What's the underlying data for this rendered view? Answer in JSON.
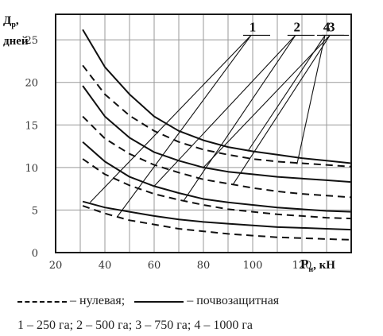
{
  "chart_data": {
    "type": "line",
    "ylabel_line1": "Д",
    "ylabel_sub": "р",
    "ylabel_line1_suffix": ",",
    "ylabel_line2": "дней",
    "xlabel_main": "P",
    "xlabel_sub": "н",
    "xlabel_suffix": ", кН",
    "xlim": [
      20,
      140
    ],
    "ylim": [
      0,
      28
    ],
    "x_ticks": [
      20,
      40,
      60,
      80,
      100,
      120
    ],
    "y_ticks": [
      0,
      5,
      10,
      15,
      20,
      25
    ],
    "grid": true,
    "callouts": [
      "1",
      "2",
      "3",
      "4"
    ],
    "legend_items": [
      {
        "style": "dashed",
        "label": "– нулевая;"
      },
      {
        "style": "solid",
        "label": "– почвозащитная"
      }
    ],
    "legend_note": "1 – 250 га; 2 – 500 га; 3 – 750 га; 4 – 1000 га",
    "series": [
      {
        "id": "1",
        "style": "solid",
        "x": [
          31,
          40,
          50,
          60,
          70,
          80,
          90,
          100,
          110,
          120,
          130,
          140
        ],
        "y": [
          6.0,
          5.3,
          4.8,
          4.3,
          3.9,
          3.6,
          3.4,
          3.2,
          3.0,
          2.9,
          2.8,
          2.7
        ]
      },
      {
        "id": "1",
        "style": "dashed",
        "x": [
          31,
          40,
          50,
          60,
          70,
          80,
          90,
          100,
          110,
          120,
          130,
          140
        ],
        "y": [
          5.5,
          4.6,
          3.8,
          3.3,
          2.8,
          2.5,
          2.2,
          2.0,
          1.8,
          1.7,
          1.6,
          1.5
        ]
      },
      {
        "id": "2",
        "style": "solid",
        "x": [
          31,
          40,
          50,
          60,
          70,
          80,
          90,
          100,
          110,
          120,
          130,
          140
        ],
        "y": [
          13.0,
          10.7,
          8.9,
          7.8,
          7.0,
          6.3,
          5.9,
          5.6,
          5.3,
          5.1,
          4.9,
          4.8
        ]
      },
      {
        "id": "2",
        "style": "dashed",
        "x": [
          31,
          40,
          50,
          60,
          70,
          80,
          90,
          100,
          110,
          120,
          130,
          140
        ],
        "y": [
          11.0,
          9.2,
          7.9,
          6.9,
          6.2,
          5.6,
          5.1,
          4.8,
          4.5,
          4.3,
          4.1,
          4.0
        ]
      },
      {
        "id": "3",
        "style": "solid",
        "x": [
          31,
          40,
          50,
          60,
          70,
          80,
          90,
          100,
          110,
          120,
          130,
          140
        ],
        "y": [
          19.6,
          16.0,
          13.5,
          11.8,
          10.8,
          10.0,
          9.5,
          9.2,
          8.9,
          8.7,
          8.5,
          8.3
        ]
      },
      {
        "id": "3",
        "style": "dashed",
        "x": [
          31,
          40,
          50,
          60,
          70,
          80,
          90,
          100,
          110,
          120,
          130,
          140
        ],
        "y": [
          16.0,
          13.4,
          11.6,
          10.3,
          9.4,
          8.6,
          8.1,
          7.6,
          7.2,
          6.9,
          6.7,
          6.5
        ]
      },
      {
        "id": "4",
        "style": "solid",
        "x": [
          31,
          40,
          50,
          60,
          70,
          80,
          90,
          100,
          110,
          120,
          130,
          140
        ],
        "y": [
          26.2,
          21.8,
          18.6,
          16.0,
          14.3,
          13.2,
          12.4,
          11.9,
          11.5,
          11.1,
          10.8,
          10.5
        ]
      },
      {
        "id": "4",
        "style": "dashed",
        "x": [
          31,
          40,
          50,
          60,
          70,
          80,
          90,
          100,
          110,
          120,
          130,
          140
        ],
        "y": [
          22.0,
          18.6,
          16.1,
          14.3,
          13.0,
          12.1,
          11.5,
          11.0,
          10.7,
          10.5,
          10.3,
          10.1
        ]
      }
    ]
  }
}
